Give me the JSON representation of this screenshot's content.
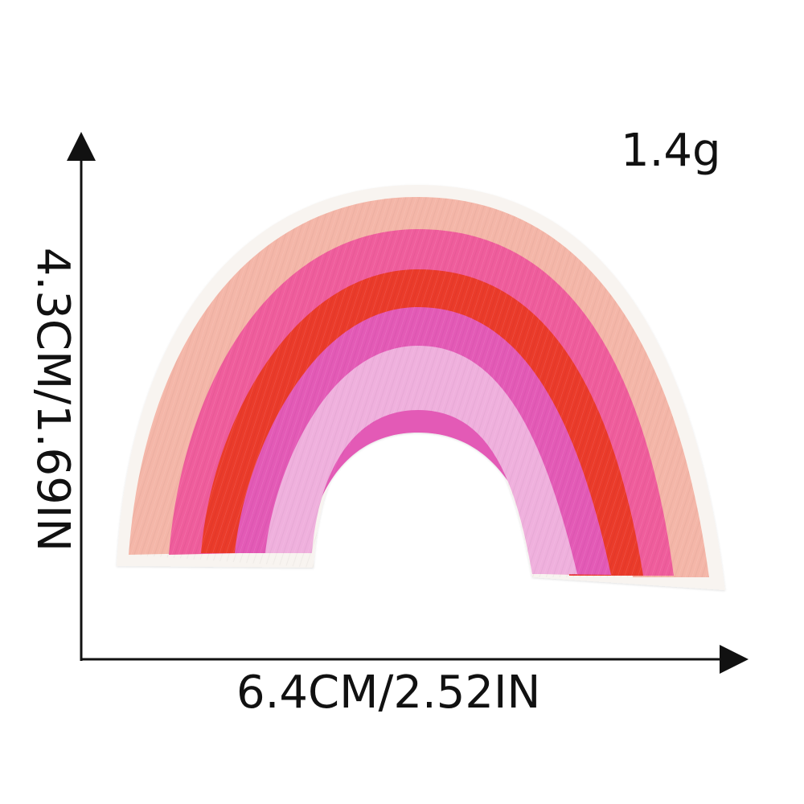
{
  "product": {
    "weight": "1.4g",
    "width": "6.4CM/2.52IN",
    "height": "4.3CM/1.69IN"
  },
  "patch": {
    "subject": "rainbow-embroidered-patch",
    "band_colors": [
      "#f4b6a8",
      "#ef5d9c",
      "#ea3a2c",
      "#e35ab6",
      "#efb0dd"
    ],
    "border_color": "#f8f4f0",
    "arrow_color": "#111111"
  }
}
